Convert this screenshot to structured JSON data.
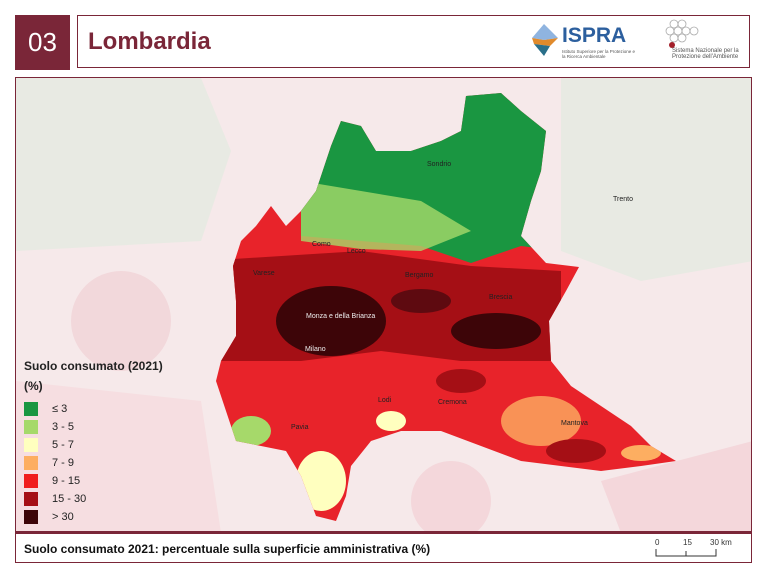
{
  "header": {
    "number": "03",
    "title": "Lombardia",
    "ispra_logo": {
      "name": "ISPRA",
      "subtitle": "Istituto Superiore per la Protezione e la Ricerca Ambientale"
    },
    "snpa_logo": {
      "subtitle": "Sistema Nazionale per la Protezione dell'Ambiente"
    }
  },
  "map": {
    "cities": [
      "Sondrio",
      "Trento",
      "Como",
      "Lecco",
      "Varese",
      "Bergamo",
      "Brescia",
      "Monza e della Brianza",
      "Milano",
      "Lodi",
      "Cremona",
      "Pavia",
      "Mantova"
    ],
    "legend": {
      "title": "Suolo consumato (2021)",
      "unit": "(%)",
      "classes": [
        {
          "label": "≤ 3",
          "color": "#1a9641"
        },
        {
          "label": "3 - 5",
          "color": "#a6d96a"
        },
        {
          "label": "5 - 7",
          "color": "#ffffbf"
        },
        {
          "label": "7 - 9",
          "color": "#fdae61"
        },
        {
          "label": "9 - 15",
          "color": "#f01e1e"
        },
        {
          "label": "15 - 30",
          "color": "#a50f15"
        },
        {
          "label": "> 30",
          "color": "#3d0508"
        }
      ]
    }
  },
  "footer": {
    "caption": "Suolo consumato 2021: percentuale sulla superficie amministrativa (%)",
    "scale": {
      "ticks": [
        "0",
        "15",
        "30 km"
      ]
    }
  },
  "colors": {
    "brand": "#7a2638"
  }
}
